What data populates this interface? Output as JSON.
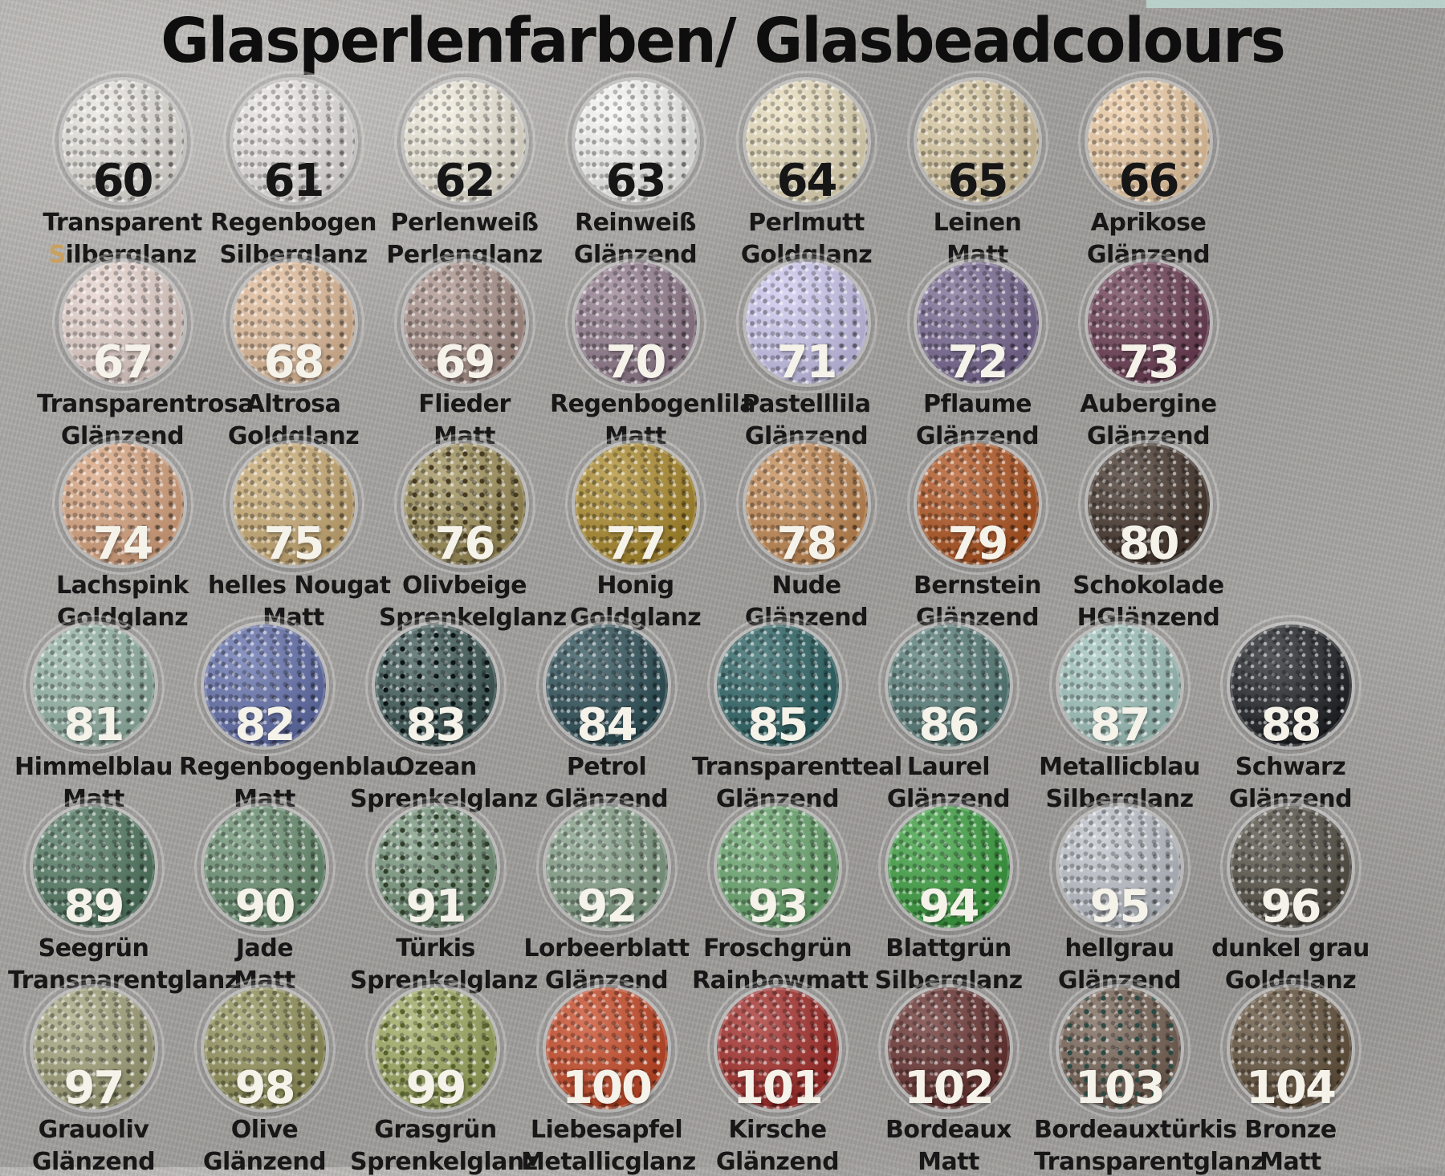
{
  "title": "Glasperlenfarben/ Glasbeadcolours",
  "palette": {
    "page_background": "#a8a6a3",
    "title_color": "#0e0e0e",
    "label_color": "#171717",
    "dark_number_color": "#161616",
    "light_number_color": "#f5f2ea",
    "accent_strip": "#bdd8d1",
    "silberglanz_accent_letter_color": "#c9a05e"
  },
  "rows": [
    {
      "items": [
        {
          "number": "60",
          "name": "Transparent",
          "finish": "Silberglanz",
          "color": "#e8e5de",
          "number_style": "dark",
          "finish_first_letter_color": "#c9a05e"
        },
        {
          "number": "61",
          "name": "Regenbogen",
          "finish": "Silberglanz",
          "color": "#e9e5e4",
          "number_style": "dark"
        },
        {
          "number": "62",
          "name": "Perlenweiß",
          "finish": "Perlenglanz",
          "color": "#efe9d9",
          "number_style": "dark"
        },
        {
          "number": "63",
          "name": "Reinweiß",
          "finish": "Glänzend",
          "color": "#f6f6f4",
          "number_style": "dark"
        },
        {
          "number": "64",
          "name": "Perlmutt",
          "finish": "Goldglanz",
          "color": "#e9ddb9",
          "number_style": "dark"
        },
        {
          "number": "65",
          "name": "Leinen",
          "finish": "Matt",
          "color": "#d9c79d",
          "number_style": "dark"
        },
        {
          "number": "66",
          "name": "Aprikose",
          "finish": "Glänzend",
          "color": "#edc99e",
          "number_style": "dark"
        }
      ]
    },
    {
      "items": [
        {
          "number": "67",
          "name": "Transparentrosa",
          "finish": "Glänzend",
          "color": "#e6d1ca",
          "number_style": "light"
        },
        {
          "number": "68",
          "name": "Altrosa",
          "finish": "Goldglanz",
          "color": "#e2ba95",
          "number_style": "light"
        },
        {
          "number": "69",
          "name": "Flieder",
          "finish": "Matt",
          "color": "#a78c84",
          "number_style": "light"
        },
        {
          "number": "70",
          "name": "Regenbogenlila",
          "finish": "Matt",
          "color": "#8c7487",
          "number_style": "light"
        },
        {
          "number": "71",
          "name": "Pastelllila",
          "finish": "Glänzend",
          "color": "#c9c3ee",
          "number_style": "light"
        },
        {
          "number": "72",
          "name": "Pflaume",
          "finish": "Glänzend",
          "color": "#71608d",
          "number_style": "light"
        },
        {
          "number": "73",
          "name": "Aubergine",
          "finish": "Glänzend",
          "color": "#64324a",
          "number_style": "light"
        }
      ]
    },
    {
      "items": [
        {
          "number": "74",
          "name": "Lachspink",
          "finish": "Goldglanz",
          "color": "#d9a078",
          "number_style": "light"
        },
        {
          "number": "75",
          "name": "helles Nougat",
          "finish": "Matt",
          "color": "#c9a86d",
          "number_style": "light"
        },
        {
          "number": "76",
          "name": "Olivbeige",
          "finish": "Sprenkelglanz",
          "color": "#99894f",
          "speckle": "#463a20",
          "number_style": "light"
        },
        {
          "number": "77",
          "name": "Honig",
          "finish": "Goldglanz",
          "color": "#a8841f",
          "number_style": "light"
        },
        {
          "number": "78",
          "name": "Nude",
          "finish": "Glänzend",
          "color": "#c2844a",
          "number_style": "light"
        },
        {
          "number": "79",
          "name": "Bernstein",
          "finish": "Glänzend",
          "color": "#ad4a12",
          "number_style": "light"
        },
        {
          "number": "80",
          "name": "Schokolade",
          "finish": "HGlänzend",
          "color": "#39291f",
          "number_style": "light"
        }
      ]
    },
    {
      "items": [
        {
          "number": "81",
          "name": "Himmelblau",
          "finish": "Matt",
          "color": "#8fb1a3",
          "number_style": "light"
        },
        {
          "number": "82",
          "name": "Regenbogenblau",
          "finish": "Matt",
          "color": "#5a68a8",
          "number_style": "light"
        },
        {
          "number": "83",
          "name": "Ozean",
          "finish": "Sprenkelglanz",
          "color": "#32504e",
          "speckle": "#0b1315",
          "number_style": "light"
        },
        {
          "number": "84",
          "name": "Petrol",
          "finish": "Glänzend",
          "color": "#20454e",
          "number_style": "light"
        },
        {
          "number": "85",
          "name": "Transparentteal",
          "finish": "Glänzend",
          "color": "#1f5a5c",
          "number_style": "light"
        },
        {
          "number": "86",
          "name": "Laurel",
          "finish": "Glänzend",
          "color": "#4d7672",
          "number_style": "light"
        },
        {
          "number": "87",
          "name": "Metallicblau",
          "finish": "Silberglanz",
          "color": "#9cc2bb",
          "number_style": "light"
        },
        {
          "number": "88",
          "name": "Schwarz",
          "finish": "Glänzend",
          "color": "#121519",
          "number_style": "light"
        }
      ]
    },
    {
      "items": [
        {
          "number": "89",
          "name": "Seegrün",
          "finish": "Transparentglanz",
          "color": "#477158",
          "number_style": "light"
        },
        {
          "number": "90",
          "name": "Jade",
          "finish": "Matt",
          "color": "#608968",
          "number_style": "light"
        },
        {
          "number": "91",
          "name": "Türkis",
          "finish": "Sprenkelglanz",
          "color": "#6f9175",
          "speckle": "#2f3f29",
          "number_style": "light"
        },
        {
          "number": "92",
          "name": "Lorbeerblatt",
          "finish": "Glänzend",
          "color": "#7c9a80",
          "number_style": "light"
        },
        {
          "number": "93",
          "name": "Froschgrün",
          "finish": "Rainbowmatt",
          "color": "#5fa164",
          "number_style": "light"
        },
        {
          "number": "94",
          "name": "Blattgrün",
          "finish": "Silberglanz",
          "color": "#2e9a33",
          "number_style": "light"
        },
        {
          "number": "95",
          "name": "hellgrau",
          "finish": "Glänzend",
          "color": "#bac0c8",
          "number_style": "light"
        },
        {
          "number": "96",
          "name": "dunkel grau",
          "finish": "Goldglanz",
          "color": "#4b463b",
          "number_style": "light"
        }
      ]
    },
    {
      "items": [
        {
          "number": "97",
          "name": "Grauoliv",
          "finish": "Glänzend",
          "color": "#9e9e74",
          "number_style": "light"
        },
        {
          "number": "98",
          "name": "Olive",
          "finish": "Glänzend",
          "color": "#8c8c50",
          "number_style": "light"
        },
        {
          "number": "99",
          "name": "Grasgrün",
          "finish": "Sprenkelglanz",
          "color": "#98a455",
          "speckle": "#55622a",
          "number_style": "light"
        },
        {
          "number": "100",
          "name": "Liebesapfel",
          "finish": "Metallicglanz",
          "color": "#c43c16",
          "number_style": "light"
        },
        {
          "number": "101",
          "name": "Kirsche",
          "finish": "Glänzend",
          "color": "#9e1e1a",
          "number_style": "light"
        },
        {
          "number": "102",
          "name": "Bordeaux",
          "finish": "Matt",
          "color": "#5e2421",
          "number_style": "light"
        },
        {
          "number": "103",
          "name": "Bordeauxtürkis",
          "finish": "Transparentglanz",
          "color": "#6e594a",
          "speckle": "#2a4a44",
          "number_style": "light"
        },
        {
          "number": "104",
          "name": "Bronze",
          "finish": "Matt",
          "color": "#5b4830",
          "number_style": "light"
        }
      ]
    }
  ]
}
